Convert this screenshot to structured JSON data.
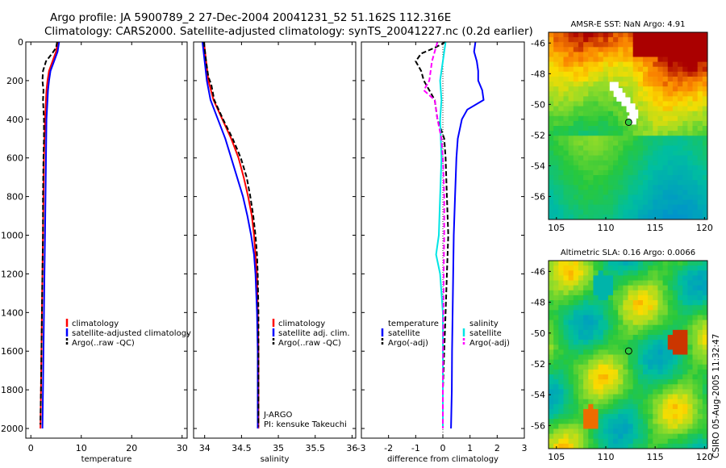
{
  "header": {
    "line1": "Argo profile: JA 5900789_2 27-Dec-2004 20041231_52 51.162S 112.316E",
    "line2": "Climatology: CARS2000. Satellite-adjusted climatology: synTS_20041227.nc (0.2d earlier)"
  },
  "side_text": "CSIRO 05-Aug-2005 11:32:47",
  "colors": {
    "climatology": "#ff0000",
    "satellite": "#0000ff",
    "argo": "#000000",
    "sal_satellite": "#00e5e5",
    "sal_argo": "#ff00ff"
  },
  "chart_data": [
    {
      "type": "line",
      "xlabel": "temperature",
      "xlim": [
        -1,
        31
      ],
      "xticks": [
        0,
        10,
        20,
        30
      ],
      "ylim": [
        0,
        2050
      ],
      "yticks": [
        0,
        200,
        400,
        600,
        800,
        1000,
        1200,
        1400,
        1600,
        1800,
        2000
      ],
      "y_reversed": true,
      "legend": [
        "climatology",
        "satellite-adjusted climatology",
        "Argo(..raw -QC)"
      ],
      "series": [
        {
          "key": "clim",
          "color": "#ff0000",
          "dash": "",
          "y": [
            0,
            50,
            100,
            150,
            200,
            250,
            300,
            400,
            600,
            800,
            1000,
            1200,
            1400,
            1600,
            1800,
            2000
          ],
          "x": [
            5.3,
            5.0,
            4.3,
            3.6,
            3.3,
            3.1,
            3.0,
            2.8,
            2.6,
            2.5,
            2.4,
            2.3,
            2.2,
            2.1,
            2.0,
            1.9
          ]
        },
        {
          "key": "sat",
          "color": "#0000ff",
          "dash": "",
          "y": [
            0,
            50,
            100,
            150,
            200,
            250,
            300,
            400,
            600,
            800,
            1000,
            1200,
            1400,
            1600,
            1800,
            2000
          ],
          "x": [
            5.6,
            5.3,
            4.6,
            3.9,
            3.6,
            3.4,
            3.3,
            3.1,
            3.0,
            2.9,
            2.8,
            2.7,
            2.6,
            2.5,
            2.4,
            2.3
          ]
        },
        {
          "key": "argo",
          "color": "#000000",
          "dash": "6,3",
          "y": [
            0,
            30,
            60,
            100,
            150,
            200,
            250,
            300,
            400,
            500,
            600,
            800,
            1000,
            1200,
            1400,
            1600,
            1800,
            1980
          ],
          "x": [
            5.2,
            5.0,
            4.2,
            3.0,
            2.4,
            2.3,
            2.5,
            2.4,
            2.6,
            2.6,
            2.5,
            2.4,
            2.4,
            2.3,
            2.2,
            2.1,
            2.0,
            1.9
          ]
        }
      ]
    },
    {
      "type": "line",
      "xlabel": "salinity",
      "xlim": [
        33.85,
        36.05
      ],
      "xticks": [
        34,
        34.5,
        35,
        35.5,
        36
      ],
      "ylim": [
        0,
        2050
      ],
      "y_reversed": true,
      "legend": [
        "climatology",
        "satellite adj. clim.",
        "Argo(..raw -QC)"
      ],
      "annotations": [
        "J-ARGO",
        "PI: kensuke Takeuchi"
      ],
      "series": [
        {
          "key": "clim",
          "color": "#ff0000",
          "dash": "",
          "y": [
            0,
            100,
            200,
            300,
            400,
            500,
            600,
            700,
            800,
            900,
            1000,
            1100,
            1200,
            1400,
            1600,
            1800,
            2000
          ],
          "x": [
            33.99,
            34.02,
            34.05,
            34.12,
            34.24,
            34.36,
            34.46,
            34.53,
            34.59,
            34.64,
            34.67,
            34.69,
            34.71,
            34.72,
            34.73,
            34.73,
            34.73
          ]
        },
        {
          "key": "sat",
          "color": "#0000ff",
          "dash": "",
          "y": [
            0,
            100,
            200,
            300,
            400,
            500,
            600,
            700,
            800,
            900,
            1000,
            1100,
            1200,
            1400,
            1600,
            1800,
            2000
          ],
          "x": [
            33.97,
            34.0,
            34.03,
            34.08,
            34.18,
            34.28,
            34.36,
            34.44,
            34.52,
            34.58,
            34.63,
            34.67,
            34.69,
            34.71,
            34.72,
            34.72,
            34.72
          ]
        },
        {
          "key": "argo",
          "color": "#000000",
          "dash": "6,3",
          "y": [
            0,
            100,
            180,
            220,
            300,
            400,
            500,
            600,
            700,
            800,
            900,
            1000,
            1100,
            1200,
            1400,
            1600,
            1800,
            1990
          ],
          "x": [
            33.99,
            34.02,
            34.05,
            34.09,
            34.13,
            34.25,
            34.38,
            34.49,
            34.57,
            34.62,
            34.66,
            34.69,
            34.71,
            34.72,
            34.73,
            34.73,
            34.73,
            34.73
          ]
        }
      ]
    },
    {
      "type": "line",
      "xlabel": "difference from climatology",
      "xlim": [
        -3,
        3
      ],
      "xticks": [
        -3,
        -2,
        -1,
        0,
        1,
        2,
        3
      ],
      "ylim": [
        0,
        2050
      ],
      "y_reversed": true,
      "legend_groups": [
        {
          "title": "temperature",
          "items": [
            "satellite",
            "Argo(-adj)"
          ]
        },
        {
          "title": "salinity",
          "items": [
            "satellite",
            "Argo(-adj)"
          ]
        }
      ],
      "series": [
        {
          "key": "t_sat",
          "color": "#0000ff",
          "dash": "",
          "y": [
            0,
            50,
            100,
            150,
            200,
            250,
            300,
            350,
            400,
            500,
            600,
            800,
            1000,
            1200,
            1400,
            1600,
            1800,
            2000
          ],
          "x": [
            1.2,
            1.15,
            1.25,
            1.3,
            1.3,
            1.45,
            1.5,
            0.9,
            0.7,
            0.55,
            0.5,
            0.45,
            0.4,
            0.38,
            0.36,
            0.34,
            0.33,
            0.3
          ]
        },
        {
          "key": "t_argo",
          "color": "#000000",
          "dash": "6,3",
          "y": [
            0,
            30,
            60,
            100,
            150,
            200,
            250,
            300,
            400,
            500,
            600,
            800,
            1000,
            1200,
            1400,
            1600,
            1800,
            2000
          ],
          "x": [
            0.1,
            -0.3,
            -0.8,
            -1.0,
            -0.8,
            -0.7,
            -0.5,
            -0.3,
            -0.2,
            0.05,
            0.1,
            0.15,
            0.2,
            0.15,
            0.1,
            0.05,
            0.0,
            0.0
          ]
        },
        {
          "key": "s_sat",
          "color": "#00e5e5",
          "dash": "",
          "y": [
            0,
            100,
            200,
            300,
            400,
            600,
            800,
            1000,
            1100,
            1200,
            1400,
            1600,
            1800,
            2000
          ],
          "x": [
            0.1,
            0.0,
            -0.1,
            -0.05,
            -0.1,
            -0.05,
            -0.1,
            -0.15,
            -0.25,
            -0.1,
            0.0,
            0.0,
            0.0,
            0.0
          ]
        },
        {
          "key": "s_argo",
          "color": "#ff00ff",
          "dash": "6,3",
          "y": [
            0,
            100,
            200,
            250,
            300,
            400,
            500,
            600,
            800,
            1000,
            1200,
            1400,
            1600,
            1800,
            2000
          ],
          "x": [
            -0.2,
            -0.4,
            -0.5,
            -0.7,
            -0.3,
            -0.2,
            -0.05,
            0.0,
            0.05,
            0.05,
            0.03,
            0.02,
            0.01,
            0.0,
            0.0
          ]
        }
      ]
    },
    {
      "type": "heatmap",
      "title": "AMSR-E SST: NaN Argo: 4.91",
      "xlim": [
        104.2,
        120.3
      ],
      "ylim": [
        -57.5,
        -45.3
      ],
      "xticks": [
        105,
        110,
        115,
        120
      ],
      "yticks": [
        -46,
        -48,
        -50,
        -52,
        -54,
        -56
      ],
      "marker": {
        "lon": 112.316,
        "lat": -51.162
      }
    },
    {
      "type": "heatmap",
      "title": "Altimetric SLA: 0.16 Argo: 0.0066",
      "xlim": [
        104.2,
        120.3
      ],
      "ylim": [
        -57.5,
        -45.3
      ],
      "xticks": [
        105,
        110,
        115,
        120
      ],
      "yticks": [
        -46,
        -48,
        -50,
        -52,
        -54,
        -56
      ],
      "marker": {
        "lon": 112.316,
        "lat": -51.162
      }
    }
  ]
}
